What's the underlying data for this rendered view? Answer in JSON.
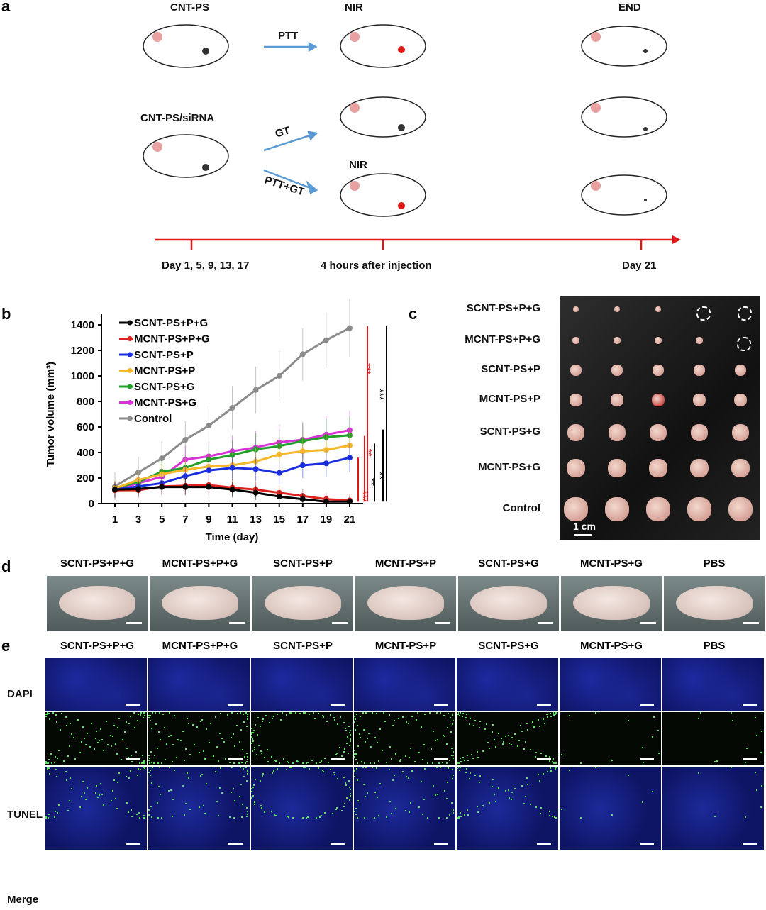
{
  "panel_a": {
    "label": "a",
    "groups": [
      "CNT-PS",
      "CNT-PS/siRNA"
    ],
    "arrows": [
      "PTT",
      "GT",
      "PTT+GT"
    ],
    "nir": "NIR",
    "end": "END",
    "timeline": [
      "Day 1, 5, 9, 13, 17",
      "4 hours after injection",
      "Day 21"
    ]
  },
  "panel_b": {
    "label": "b"
  },
  "chart_data": {
    "type": "line",
    "xlabel": "Time (day)",
    "ylabel": "Tumor volume (mm³)",
    "ylim": [
      0,
      1400
    ],
    "yticks": [
      0,
      200,
      400,
      600,
      800,
      1000,
      1200,
      1400
    ],
    "x": [
      1,
      3,
      5,
      7,
      9,
      11,
      13,
      15,
      17,
      19,
      21
    ],
    "legend_placement": "top-left",
    "grid": false,
    "series": [
      {
        "name": "SCNT-PS+P+G",
        "color": "#000000",
        "marker": "dot",
        "values": [
          110,
          115,
          130,
          130,
          130,
          110,
          85,
          55,
          35,
          15,
          15
        ]
      },
      {
        "name": "MCNT-PS+P+G",
        "color": "#e0201c",
        "marker": "square",
        "values": [
          105,
          105,
          135,
          140,
          145,
          125,
          110,
          85,
          60,
          35,
          25
        ]
      },
      {
        "name": "SCNT-PS+P",
        "color": "#1a2ee0",
        "marker": "square",
        "values": [
          110,
          135,
          160,
          215,
          260,
          280,
          270,
          240,
          300,
          315,
          360
        ]
      },
      {
        "name": "MCNT-PS+P",
        "color": "#f5b82a",
        "marker": "dot",
        "values": [
          120,
          185,
          230,
          265,
          290,
          300,
          330,
          385,
          410,
          420,
          455
        ]
      },
      {
        "name": "SCNT-PS+G",
        "color": "#22a02a",
        "marker": "triangle",
        "values": [
          120,
          170,
          250,
          280,
          345,
          380,
          425,
          450,
          490,
          520,
          535
        ]
      },
      {
        "name": "MCNT-PS+G",
        "color": "#d832d8",
        "marker": "diamond",
        "values": [
          105,
          160,
          210,
          345,
          370,
          410,
          440,
          480,
          500,
          540,
          575
        ]
      },
      {
        "name": "Control",
        "color": "#8c8c8c",
        "marker": "dot",
        "values": [
          135,
          245,
          355,
          500,
          610,
          750,
          890,
          1000,
          1170,
          1280,
          1375
        ]
      }
    ],
    "significance": [
      "***",
      "***",
      "**",
      "**",
      "***",
      "**"
    ]
  },
  "panel_c": {
    "label": "c",
    "rows": [
      "SCNT-PS+P+G",
      "MCNT-PS+P+G",
      "SCNT-PS+P",
      "MCNT-PS+P",
      "SCNT-PS+G",
      "MCNT-PS+G",
      "Control"
    ],
    "scale": "1 cm"
  },
  "panel_d": {
    "label": "d",
    "groups": [
      "SCNT-PS+P+G",
      "MCNT-PS+P+G",
      "SCNT-PS+P",
      "MCNT-PS+P",
      "SCNT-PS+G",
      "MCNT-PS+G",
      "PBS"
    ]
  },
  "panel_e": {
    "label": "e",
    "groups": [
      "SCNT-PS+P+G",
      "MCNT-PS+P+G",
      "SCNT-PS+P",
      "MCNT-PS+P",
      "SCNT-PS+G",
      "MCNT-PS+G",
      "PBS"
    ],
    "rows": [
      "DAPI",
      "TUNEL",
      "Merge"
    ]
  }
}
